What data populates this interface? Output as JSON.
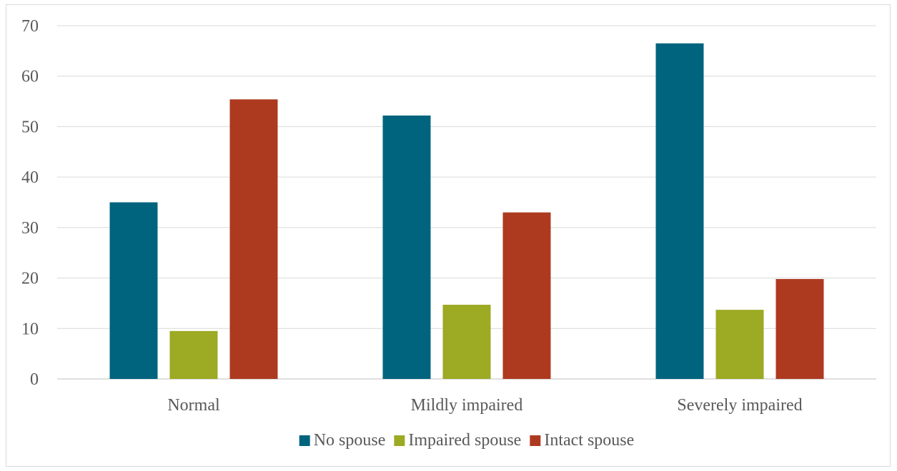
{
  "chart_data": {
    "type": "bar",
    "categories": [
      "Normal",
      "Mildly impaired",
      "Severely impaired"
    ],
    "series": [
      {
        "name": "No spouse",
        "color": "#00647f",
        "values": [
          35.0,
          52.2,
          66.5
        ]
      },
      {
        "name": "Impaired spouse",
        "color": "#9caa24",
        "values": [
          9.5,
          14.7,
          13.7
        ]
      },
      {
        "name": "Intact spouse",
        "color": "#ad3a1f",
        "values": [
          55.4,
          33.0,
          19.8
        ]
      }
    ],
    "ylim": [
      0,
      70
    ],
    "yticks": [
      "0",
      "10",
      "20",
      "30",
      "40",
      "50",
      "60",
      "70"
    ],
    "grid": true,
    "legend": "bottom",
    "title": "",
    "xlabel": "",
    "ylabel": ""
  }
}
